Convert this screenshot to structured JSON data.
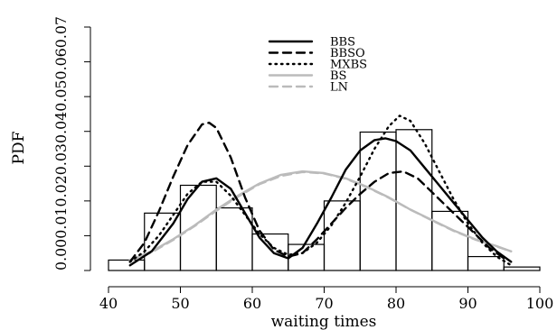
{
  "chart_data": {
    "type": "histogram-with-density-curves",
    "title": "",
    "xlabel": "waiting times",
    "ylabel": "PDF",
    "xlim": [
      40,
      100
    ],
    "ylim": [
      0,
      0.07
    ],
    "x_ticks": [
      40,
      50,
      60,
      70,
      80,
      90,
      100
    ],
    "y_ticks": [
      "0.00",
      "0.01",
      "0.02",
      "0.03",
      "0.04",
      "0.05",
      "0.06",
      "0.07"
    ],
    "grid": false,
    "legend_position": "top-center",
    "histogram": {
      "bin_edges": [
        40,
        45,
        50,
        55,
        60,
        65,
        70,
        75,
        80,
        85,
        90,
        95,
        100
      ],
      "densities": [
        0.003,
        0.0165,
        0.0245,
        0.018,
        0.0105,
        0.0075,
        0.02,
        0.0398,
        0.0405,
        0.017,
        0.004,
        0.001
      ]
    },
    "series": [
      {
        "name": "BBS",
        "style": "solid",
        "color": "#000000",
        "points": [
          [
            43,
            0.0015
          ],
          [
            46,
            0.0055
          ],
          [
            49,
            0.0135
          ],
          [
            51,
            0.0205
          ],
          [
            53,
            0.0255
          ],
          [
            55,
            0.0265
          ],
          [
            57,
            0.0235
          ],
          [
            59,
            0.0165
          ],
          [
            61,
            0.0095
          ],
          [
            63,
            0.005
          ],
          [
            65,
            0.0035
          ],
          [
            67,
            0.0065
          ],
          [
            69,
            0.0135
          ],
          [
            71,
            0.021
          ],
          [
            73,
            0.029
          ],
          [
            75,
            0.0345
          ],
          [
            77,
            0.0375
          ],
          [
            78.5,
            0.038
          ],
          [
            80,
            0.0372
          ],
          [
            82,
            0.0345
          ],
          [
            84,
            0.0295
          ],
          [
            86,
            0.0245
          ],
          [
            88,
            0.0195
          ],
          [
            90,
            0.0145
          ],
          [
            92,
            0.0095
          ],
          [
            94,
            0.0055
          ],
          [
            96,
            0.0025
          ]
        ]
      },
      {
        "name": "BBSO",
        "style": "dashed",
        "color": "#000000",
        "points": [
          [
            43,
            0.0025
          ],
          [
            45,
            0.008
          ],
          [
            47,
            0.017
          ],
          [
            49,
            0.027
          ],
          [
            51,
            0.036
          ],
          [
            53,
            0.042
          ],
          [
            54,
            0.0425
          ],
          [
            55,
            0.041
          ],
          [
            57,
            0.0325
          ],
          [
            59,
            0.021
          ],
          [
            61,
            0.0115
          ],
          [
            63,
            0.006
          ],
          [
            65,
            0.004
          ],
          [
            67,
            0.005
          ],
          [
            69,
            0.009
          ],
          [
            71,
            0.0135
          ],
          [
            73,
            0.018
          ],
          [
            75,
            0.022
          ],
          [
            77,
            0.0255
          ],
          [
            79,
            0.028
          ],
          [
            81,
            0.0285
          ],
          [
            83,
            0.0265
          ],
          [
            85,
            0.0225
          ],
          [
            87,
            0.0185
          ],
          [
            89,
            0.0145
          ],
          [
            91,
            0.0105
          ],
          [
            93,
            0.0065
          ],
          [
            95,
            0.0035
          ]
        ]
      },
      {
        "name": "MXBS",
        "style": "dotted",
        "color": "#000000",
        "points": [
          [
            43,
            0.0025
          ],
          [
            45,
            0.0055
          ],
          [
            47,
            0.01
          ],
          [
            49,
            0.016
          ],
          [
            51,
            0.022
          ],
          [
            53,
            0.0255
          ],
          [
            55,
            0.0255
          ],
          [
            57,
            0.0215
          ],
          [
            59,
            0.016
          ],
          [
            61,
            0.0105
          ],
          [
            63,
            0.0065
          ],
          [
            65,
            0.0045
          ],
          [
            67,
            0.005
          ],
          [
            69,
            0.008
          ],
          [
            71,
            0.013
          ],
          [
            73,
            0.0195
          ],
          [
            75,
            0.027
          ],
          [
            77,
            0.035
          ],
          [
            79,
            0.0415
          ],
          [
            80.5,
            0.0445
          ],
          [
            82,
            0.043
          ],
          [
            84,
            0.0365
          ],
          [
            86,
            0.0285
          ],
          [
            88,
            0.0205
          ],
          [
            90,
            0.0135
          ],
          [
            92,
            0.008
          ],
          [
            94,
            0.004
          ],
          [
            96,
            0.0015
          ]
        ]
      },
      {
        "name": "BS",
        "style": "solid",
        "color": "#bbbbbb",
        "points": [
          [
            43,
            0.003
          ],
          [
            46,
            0.0055
          ],
          [
            49,
            0.009
          ],
          [
            52,
            0.013
          ],
          [
            55,
            0.0175
          ],
          [
            58,
            0.0215
          ],
          [
            61,
            0.025
          ],
          [
            64,
            0.0275
          ],
          [
            67,
            0.0285
          ],
          [
            70,
            0.028
          ],
          [
            73,
            0.0265
          ],
          [
            76,
            0.024
          ],
          [
            79,
            0.021
          ],
          [
            82,
            0.0175
          ],
          [
            85,
            0.0145
          ],
          [
            88,
            0.0115
          ],
          [
            91,
            0.009
          ],
          [
            94,
            0.007
          ],
          [
            96,
            0.0055
          ]
        ]
      },
      {
        "name": "LN",
        "style": "dashed",
        "color": "#bbbbbb",
        "points": [
          [
            43,
            0.0028
          ],
          [
            46,
            0.0052
          ],
          [
            49,
            0.0088
          ],
          [
            52,
            0.0128
          ],
          [
            55,
            0.0172
          ],
          [
            58,
            0.0212
          ],
          [
            61,
            0.0248
          ],
          [
            64,
            0.0272
          ],
          [
            67,
            0.0283
          ],
          [
            70,
            0.0279
          ],
          [
            73,
            0.0264
          ],
          [
            76,
            0.0239
          ],
          [
            79,
            0.0209
          ],
          [
            82,
            0.0175
          ],
          [
            85,
            0.0144
          ],
          [
            88,
            0.0114
          ],
          [
            91,
            0.0089
          ],
          [
            94,
            0.0069
          ],
          [
            96,
            0.0055
          ]
        ]
      }
    ]
  }
}
